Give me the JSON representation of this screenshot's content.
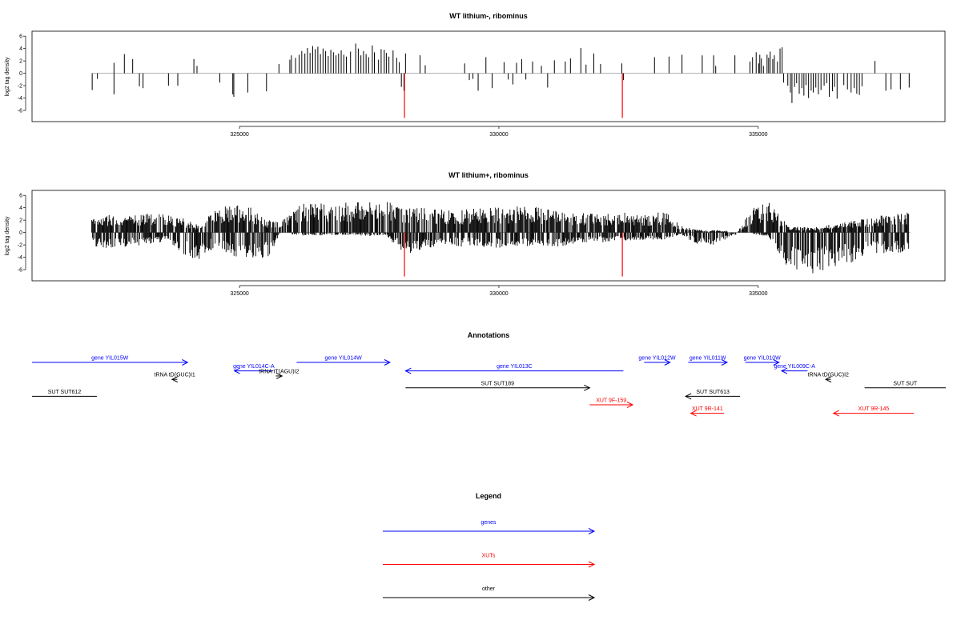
{
  "chart_data": [
    {
      "type": "bar",
      "title": "WT lithium-, ribominus",
      "xlabel": "",
      "ylabel": "log2 tag density",
      "xlim": [
        321000,
        338600
      ],
      "ylim": [
        -7.8,
        6.8
      ],
      "yticks": [
        -6,
        -4,
        -2,
        0,
        2,
        4,
        6
      ],
      "xticks": [
        325000,
        330000,
        335000
      ],
      "xtick_labels": [
        "325000",
        "330000",
        "335000"
      ],
      "baseline_color": "#999999",
      "bar_color": "#000000",
      "highlight_color": "#ff0000",
      "bars": [
        [
          322160,
          -2.7
        ],
        [
          322260,
          -0.9
        ],
        [
          322580,
          1.7
        ],
        [
          322580,
          -3.4
        ],
        [
          322780,
          3.1
        ],
        [
          322940,
          2.3
        ],
        [
          323070,
          -2.1
        ],
        [
          323140,
          -2.4
        ],
        [
          323630,
          -2.0
        ],
        [
          323810,
          -2.0
        ],
        [
          324120,
          2.3
        ],
        [
          324180,
          1.2
        ],
        [
          324620,
          -1.5
        ],
        [
          324870,
          -3.4
        ],
        [
          324890,
          -3.8
        ],
        [
          325160,
          -3.1
        ],
        [
          325520,
          -2.9
        ],
        [
          325760,
          1.5
        ],
        [
          325970,
          2.2
        ],
        [
          326000,
          2.9
        ],
        [
          326080,
          2.5
        ],
        [
          326150,
          3.0
        ],
        [
          326200,
          3.6
        ],
        [
          326260,
          3.2
        ],
        [
          326310,
          4.1
        ],
        [
          326360,
          3.3
        ],
        [
          326410,
          4.4
        ],
        [
          326460,
          3.9
        ],
        [
          326510,
          4.3
        ],
        [
          326560,
          3.1
        ],
        [
          326610,
          4.0
        ],
        [
          326660,
          3.6
        ],
        [
          326710,
          2.8
        ],
        [
          326760,
          3.8
        ],
        [
          326810,
          3.4
        ],
        [
          326860,
          2.9
        ],
        [
          326910,
          3.2
        ],
        [
          326960,
          3.7
        ],
        [
          327010,
          3.0
        ],
        [
          327060,
          2.7
        ],
        [
          327140,
          3.5
        ],
        [
          327240,
          4.8
        ],
        [
          327290,
          4.0
        ],
        [
          327340,
          2.9
        ],
        [
          327390,
          3.6
        ],
        [
          327440,
          3.1
        ],
        [
          327490,
          2.6
        ],
        [
          327560,
          4.5
        ],
        [
          327600,
          3.4
        ],
        [
          327680,
          2.2
        ],
        [
          327730,
          3.9
        ],
        [
          327790,
          3.8
        ],
        [
          327830,
          3.3
        ],
        [
          327880,
          2.7
        ],
        [
          327960,
          3.7
        ],
        [
          328030,
          2.5
        ],
        [
          328080,
          1.8
        ],
        [
          328120,
          -2.2
        ],
        [
          328170,
          -2.8
        ],
        [
          328200,
          3.2
        ],
        [
          328480,
          2.9
        ],
        [
          328580,
          1.3
        ],
        [
          329340,
          1.6
        ],
        [
          329430,
          -1.1
        ],
        [
          329500,
          -0.9
        ],
        [
          329600,
          -2.8
        ],
        [
          329750,
          2.6
        ],
        [
          329870,
          -2.4
        ],
        [
          330100,
          1.8
        ],
        [
          330180,
          -1.0
        ],
        [
          330270,
          -1.8
        ],
        [
          330340,
          1.7
        ],
        [
          330440,
          2.3
        ],
        [
          330520,
          -1.0
        ],
        [
          330650,
          1.9
        ],
        [
          330820,
          1.2
        ],
        [
          330940,
          -2.3
        ],
        [
          331070,
          2.1
        ],
        [
          331280,
          1.9
        ],
        [
          331380,
          2.4
        ],
        [
          331580,
          4.1
        ],
        [
          331680,
          1.4
        ],
        [
          331830,
          3.2
        ],
        [
          331960,
          1.5
        ],
        [
          332370,
          1.6
        ],
        [
          332400,
          -1.1
        ],
        [
          333000,
          2.6
        ],
        [
          333280,
          2.7
        ],
        [
          333530,
          3.0
        ],
        [
          333920,
          2.9
        ],
        [
          334140,
          2.9
        ],
        [
          334180,
          1.2
        ],
        [
          334550,
          2.9
        ],
        [
          334840,
          1.9
        ],
        [
          334890,
          2.6
        ],
        [
          334960,
          3.4
        ],
        [
          335010,
          1.6
        ],
        [
          335030,
          3.0
        ],
        [
          335060,
          2.4
        ],
        [
          335100,
          1.2
        ],
        [
          335170,
          3.0
        ],
        [
          335200,
          2.5
        ],
        [
          335230,
          3.5
        ],
        [
          335280,
          2.3
        ],
        [
          335310,
          2.9
        ],
        [
          335370,
          1.9
        ],
        [
          335420,
          4.0
        ],
        [
          335460,
          4.2
        ],
        [
          335490,
          -1.5
        ],
        [
          335570,
          -2.0
        ],
        [
          335620,
          -3.1
        ],
        [
          335650,
          -4.8
        ],
        [
          335700,
          -2.2
        ],
        [
          335740,
          -1.6
        ],
        [
          335790,
          -3.3
        ],
        [
          335840,
          -2.4
        ],
        [
          335880,
          -3.6
        ],
        [
          335920,
          -1.9
        ],
        [
          335970,
          -4.0
        ],
        [
          336020,
          -2.8
        ],
        [
          336060,
          -3.1
        ],
        [
          336110,
          -2.3
        ],
        [
          336160,
          -3.4
        ],
        [
          336210,
          -2.7
        ],
        [
          336270,
          -2.0
        ],
        [
          336320,
          -1.6
        ],
        [
          336370,
          -3.8
        ],
        [
          336430,
          -2.9
        ],
        [
          336470,
          -2.2
        ],
        [
          336520,
          -4.1
        ],
        [
          336650,
          -1.9
        ],
        [
          336720,
          -2.6
        ],
        [
          336790,
          -3.1
        ],
        [
          336850,
          -2.4
        ],
        [
          336900,
          -3.3
        ],
        [
          336950,
          -3.5
        ],
        [
          337000,
          -2.1
        ],
        [
          337250,
          2.0
        ],
        [
          337460,
          -2.8
        ],
        [
          337560,
          -2.6
        ],
        [
          337740,
          -2.6
        ],
        [
          337910,
          -2.3
        ]
      ],
      "highlight_bars": [
        [
          328180,
          -7.2
        ],
        [
          332380,
          -7.2
        ]
      ]
    },
    {
      "type": "bar",
      "title": "WT lithium+, ribominus",
      "xlabel": "",
      "ylabel": "log2 tag density",
      "xlim": [
        321000,
        338600
      ],
      "ylim": [
        -7.8,
        6.8
      ],
      "yticks": [
        -6,
        -4,
        -2,
        0,
        2,
        4,
        6
      ],
      "xticks": [
        325000,
        330000,
        335000
      ],
      "xtick_labels": [
        "325000",
        "330000",
        "335000"
      ],
      "baseline_color": "#999999",
      "bar_color": "#000000",
      "highlight_color": "#ff0000",
      "density_profile": [
        [
          322150,
          2.8,
          -2.2
        ],
        [
          322500,
          2.9,
          -2.6
        ],
        [
          323000,
          3.1,
          -2.3
        ],
        [
          323600,
          3.0,
          -1.4
        ],
        [
          323900,
          2.4,
          -3.8
        ],
        [
          324200,
          1.2,
          -4.4
        ],
        [
          324500,
          3.9,
          -2.6
        ],
        [
          324800,
          4.6,
          -3.9
        ],
        [
          325200,
          4.2,
          -4.2
        ],
        [
          325550,
          2.0,
          -4.1
        ],
        [
          325800,
          1.8,
          0.0
        ],
        [
          326200,
          4.7,
          -0.6
        ],
        [
          326800,
          5.0,
          -0.4
        ],
        [
          327300,
          4.9,
          -0.5
        ],
        [
          327800,
          5.1,
          -0.6
        ],
        [
          328200,
          4.3,
          -3.5
        ],
        [
          328600,
          3.9,
          -2.6
        ],
        [
          329100,
          3.6,
          -2.2
        ],
        [
          329600,
          3.9,
          -2.4
        ],
        [
          330100,
          4.1,
          -2.6
        ],
        [
          330600,
          4.3,
          -2.3
        ],
        [
          331000,
          3.7,
          -2.6
        ],
        [
          331500,
          3.2,
          -1.8
        ],
        [
          331900,
          3.0,
          -1.7
        ],
        [
          332400,
          3.6,
          -1.4
        ],
        [
          332800,
          2.8,
          -1.2
        ],
        [
          333200,
          3.5,
          -1.4
        ],
        [
          333500,
          1.2,
          -0.3
        ],
        [
          333800,
          0.5,
          -1.8
        ],
        [
          334200,
          0.4,
          -2.1
        ],
        [
          334600,
          0.2,
          -0.2
        ],
        [
          334900,
          4.0,
          -0.3
        ],
        [
          335200,
          4.9,
          -0.6
        ],
        [
          335600,
          1.0,
          -6.5
        ],
        [
          336000,
          0.8,
          -6.8
        ],
        [
          336500,
          1.4,
          -5.8
        ],
        [
          337000,
          2.3,
          -4.2
        ],
        [
          337500,
          3.0,
          -3.6
        ],
        [
          337900,
          3.3,
          -3.2
        ]
      ],
      "highlight_bars": [
        [
          328180,
          -7.1
        ],
        [
          332380,
          -7.1
        ]
      ]
    }
  ],
  "annotations": {
    "title": "Annotations",
    "xlim": [
      321000,
      338600
    ],
    "items": [
      {
        "label": "gene YIL015W",
        "start": 321000,
        "end": 324000,
        "strand": "+",
        "color": "#0000ff",
        "row": 0
      },
      {
        "label": "gene YIL014C-A",
        "start": 324900,
        "end": 325650,
        "strand": "-",
        "color": "#0000ff",
        "row": 1
      },
      {
        "label": "gene YIL014W",
        "start": 326100,
        "end": 327900,
        "strand": "+",
        "color": "#0000ff",
        "row": 0
      },
      {
        "label": "gene YIL013C",
        "start": 328200,
        "end": 332400,
        "strand": "-",
        "color": "#0000ff",
        "row": 1
      },
      {
        "label": "gene YIL012W",
        "start": 332800,
        "end": 333300,
        "strand": "+",
        "color": "#0000ff",
        "row": 0
      },
      {
        "label": "gene YIL011W",
        "start": 333650,
        "end": 334400,
        "strand": "+",
        "color": "#0000ff",
        "row": 0
      },
      {
        "label": "gene YIL010W",
        "start": 334750,
        "end": 335400,
        "strand": "+",
        "color": "#0000ff",
        "row": 0
      },
      {
        "label": "gene YIL009C-A",
        "start": 335450,
        "end": 335950,
        "strand": "-",
        "color": "#0000ff",
        "row": 1
      },
      {
        "label": "tRNA tD(GUC)I1",
        "start": 323700,
        "end": 323800,
        "strand": "-",
        "color": "#000000",
        "row": 2
      },
      {
        "label": "tRNA tT(AGU)I2",
        "start": 325700,
        "end": 325820,
        "strand": "+",
        "color": "#000000",
        "row": 1.6
      },
      {
        "label": "tRNA tD(GUC)I2",
        "start": 336300,
        "end": 336400,
        "strand": "-",
        "color": "#000000",
        "row": 2
      },
      {
        "label": "SUT SUT612",
        "start": 321000,
        "end": 322250,
        "strand": "none",
        "color": "#000000",
        "row": 4
      },
      {
        "label": "SUT SUT189",
        "start": 328200,
        "end": 331750,
        "strand": "+",
        "color": "#000000",
        "row": 3
      },
      {
        "label": "SUT SUT613",
        "start": 333600,
        "end": 334650,
        "strand": "-",
        "color": "#000000",
        "row": 4
      },
      {
        "label": "SUT SUT",
        "start": 337050,
        "end": 338700,
        "strand": "none",
        "color": "#000000",
        "row": 3
      },
      {
        "label": "XUT 9F-159",
        "start": 331750,
        "end": 332580,
        "strand": "+",
        "color": "#ff0000",
        "row": 5
      },
      {
        "label": "XUT 9R-141",
        "start": 333700,
        "end": 334340,
        "strand": "-",
        "color": "#ff0000",
        "row": 6
      },
      {
        "label": "XUT 9R-145",
        "start": 336450,
        "end": 338000,
        "strand": "-",
        "color": "#ff0000",
        "row": 6
      }
    ]
  },
  "legend": {
    "title": "Legend",
    "entries": [
      {
        "label": "genes",
        "color": "#0000ff"
      },
      {
        "label": "XUTs",
        "color": "#ff0000"
      },
      {
        "label": "other",
        "color": "#000000"
      }
    ]
  }
}
